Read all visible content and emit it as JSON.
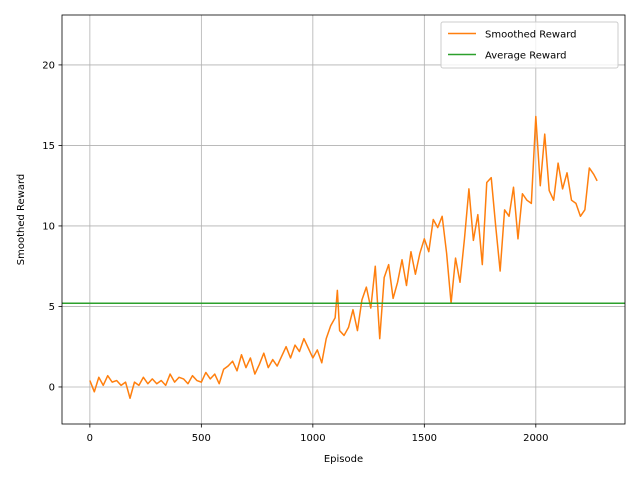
{
  "chart_data": {
    "type": "line",
    "title": "",
    "xlabel": "Episode",
    "ylabel": "Smoothed Reward",
    "xlim": [
      -125,
      2400
    ],
    "ylim": [
      -2.3,
      23.1
    ],
    "xticks": [
      0,
      500,
      1000,
      1500,
      2000
    ],
    "yticks": [
      0,
      5,
      10,
      15,
      20
    ],
    "grid": true,
    "legend_position": "top-right",
    "series": [
      {
        "name": "Smoothed Reward",
        "color": "#ff7f0e",
        "kind": "line",
        "points": [
          [
            0,
            0.4
          ],
          [
            20,
            -0.3
          ],
          [
            40,
            0.6
          ],
          [
            60,
            0.1
          ],
          [
            80,
            0.7
          ],
          [
            100,
            0.3
          ],
          [
            120,
            0.4
          ],
          [
            140,
            0.1
          ],
          [
            160,
            0.3
          ],
          [
            180,
            -0.7
          ],
          [
            200,
            0.3
          ],
          [
            220,
            0.1
          ],
          [
            240,
            0.6
          ],
          [
            260,
            0.2
          ],
          [
            280,
            0.5
          ],
          [
            300,
            0.2
          ],
          [
            320,
            0.4
          ],
          [
            340,
            0.1
          ],
          [
            360,
            0.8
          ],
          [
            380,
            0.3
          ],
          [
            400,
            0.6
          ],
          [
            420,
            0.5
          ],
          [
            440,
            0.2
          ],
          [
            460,
            0.7
          ],
          [
            480,
            0.4
          ],
          [
            500,
            0.3
          ],
          [
            520,
            0.9
          ],
          [
            540,
            0.5
          ],
          [
            560,
            0.8
          ],
          [
            580,
            0.2
          ],
          [
            600,
            1.1
          ],
          [
            620,
            1.3
          ],
          [
            640,
            1.6
          ],
          [
            660,
            1.0
          ],
          [
            680,
            2.0
          ],
          [
            700,
            1.2
          ],
          [
            720,
            1.8
          ],
          [
            740,
            0.8
          ],
          [
            760,
            1.4
          ],
          [
            780,
            2.1
          ],
          [
            800,
            1.2
          ],
          [
            820,
            1.7
          ],
          [
            840,
            1.3
          ],
          [
            860,
            1.9
          ],
          [
            880,
            2.5
          ],
          [
            900,
            1.8
          ],
          [
            920,
            2.6
          ],
          [
            940,
            2.2
          ],
          [
            960,
            3.0
          ],
          [
            980,
            2.4
          ],
          [
            1000,
            1.8
          ],
          [
            1020,
            2.3
          ],
          [
            1040,
            1.5
          ],
          [
            1060,
            3.0
          ],
          [
            1080,
            3.8
          ],
          [
            1100,
            4.3
          ],
          [
            1110,
            6.0
          ],
          [
            1120,
            3.5
          ],
          [
            1140,
            3.2
          ],
          [
            1160,
            3.7
          ],
          [
            1180,
            4.8
          ],
          [
            1200,
            3.5
          ],
          [
            1220,
            5.4
          ],
          [
            1240,
            6.2
          ],
          [
            1260,
            4.9
          ],
          [
            1280,
            7.5
          ],
          [
            1300,
            3.0
          ],
          [
            1320,
            6.8
          ],
          [
            1340,
            7.6
          ],
          [
            1360,
            5.5
          ],
          [
            1380,
            6.5
          ],
          [
            1400,
            7.9
          ],
          [
            1420,
            6.3
          ],
          [
            1440,
            8.4
          ],
          [
            1460,
            7.0
          ],
          [
            1480,
            8.3
          ],
          [
            1500,
            9.2
          ],
          [
            1520,
            8.4
          ],
          [
            1540,
            10.4
          ],
          [
            1560,
            9.9
          ],
          [
            1580,
            10.6
          ],
          [
            1600,
            8.3
          ],
          [
            1620,
            5.2
          ],
          [
            1640,
            8.0
          ],
          [
            1660,
            6.5
          ],
          [
            1680,
            9.2
          ],
          [
            1700,
            12.3
          ],
          [
            1720,
            9.1
          ],
          [
            1740,
            10.7
          ],
          [
            1760,
            7.6
          ],
          [
            1780,
            12.7
          ],
          [
            1800,
            13.0
          ],
          [
            1820,
            10.0
          ],
          [
            1840,
            7.2
          ],
          [
            1860,
            11.0
          ],
          [
            1880,
            10.6
          ],
          [
            1900,
            12.4
          ],
          [
            1920,
            9.2
          ],
          [
            1940,
            12.0
          ],
          [
            1960,
            11.6
          ],
          [
            1980,
            11.4
          ],
          [
            2000,
            16.8
          ],
          [
            2020,
            12.5
          ],
          [
            2040,
            15.7
          ],
          [
            2060,
            12.2
          ],
          [
            2080,
            11.6
          ],
          [
            2100,
            13.9
          ],
          [
            2120,
            12.3
          ],
          [
            2140,
            13.3
          ],
          [
            2160,
            11.6
          ],
          [
            2180,
            11.4
          ],
          [
            2200,
            10.6
          ],
          [
            2220,
            11.0
          ],
          [
            2240,
            13.6
          ],
          [
            2260,
            13.2
          ],
          [
            2275,
            12.8
          ]
        ]
      },
      {
        "name": "Average Reward",
        "color": "#2ca02c",
        "kind": "hline",
        "y": 5.2
      }
    ]
  }
}
